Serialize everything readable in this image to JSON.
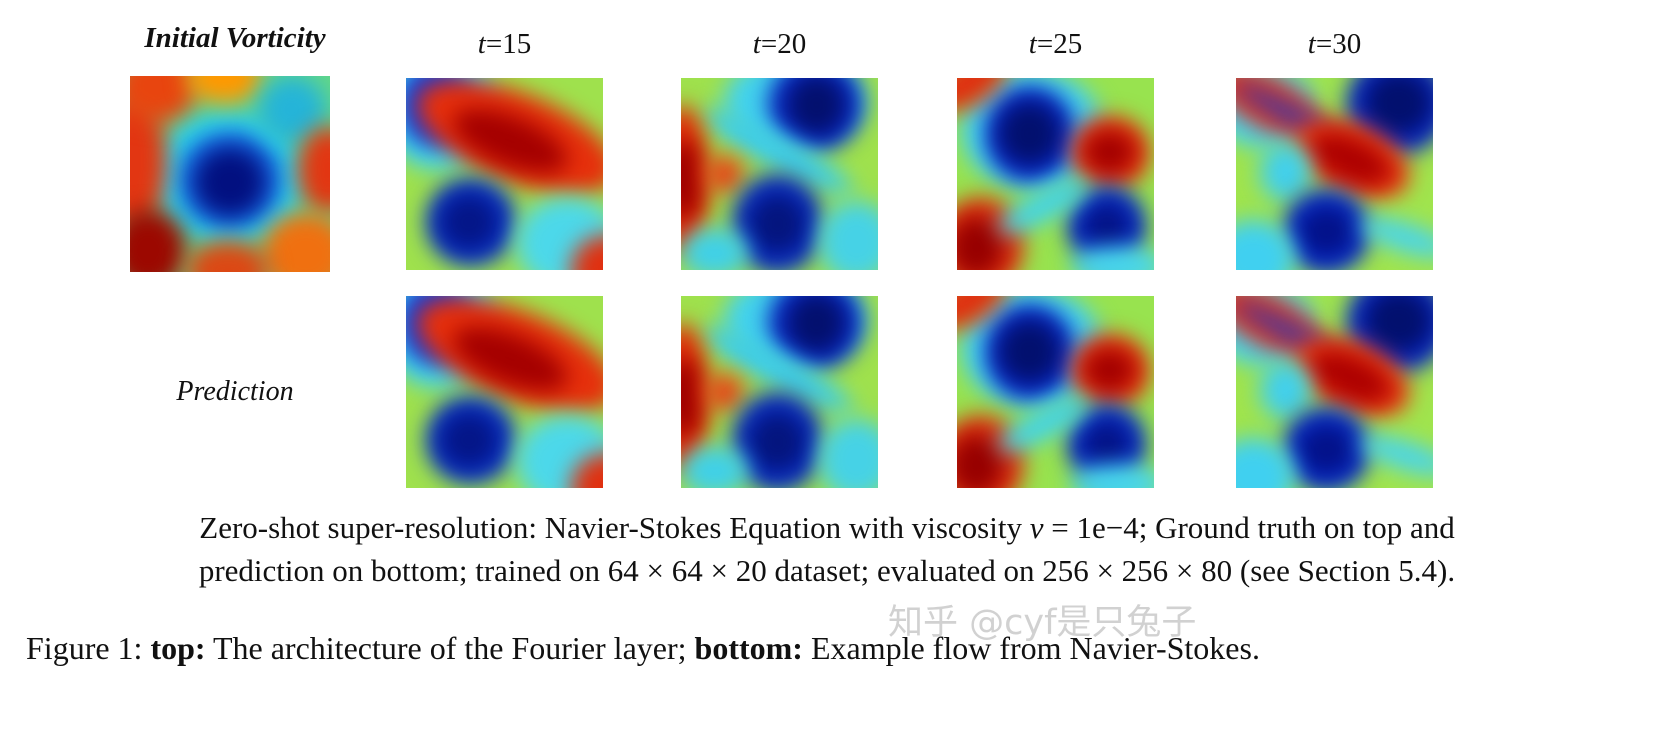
{
  "figure": {
    "row_labels": {
      "initial": "Initial Vorticity",
      "prediction": "Prediction"
    },
    "time_labels": [
      {
        "var": "t",
        "value": "=15"
      },
      {
        "var": "t",
        "value": "=20"
      },
      {
        "var": "t",
        "value": "=25"
      },
      {
        "var": "t",
        "value": "=30"
      }
    ],
    "caption": {
      "line1_text": "Zero-shot super-resolution: Navier-Stokes Equation with viscosity ",
      "line1_nu": "ν",
      "line1_rest": " = 1e−4; Ground truth on top and",
      "line2": "prediction on bottom; trained on 64 × 64 × 20 dataset; evaluated on 256 × 256 × 80 (see Section 5.4)."
    },
    "figure_caption": {
      "prefix": "Figure 1: ",
      "bold_top": "top:",
      "middle": " The architecture of the Fourier layer; ",
      "bold_bottom": "bottom:",
      "suffix": " Example flow from Navier-Stokes."
    },
    "watermark": "知乎 @cyf是只兔子",
    "colormap_colors": [
      "#00007f",
      "#0000ff",
      "#00ffff",
      "#7fff00",
      "#ffff00",
      "#ff7f00",
      "#ff0000",
      "#7f0000"
    ]
  }
}
